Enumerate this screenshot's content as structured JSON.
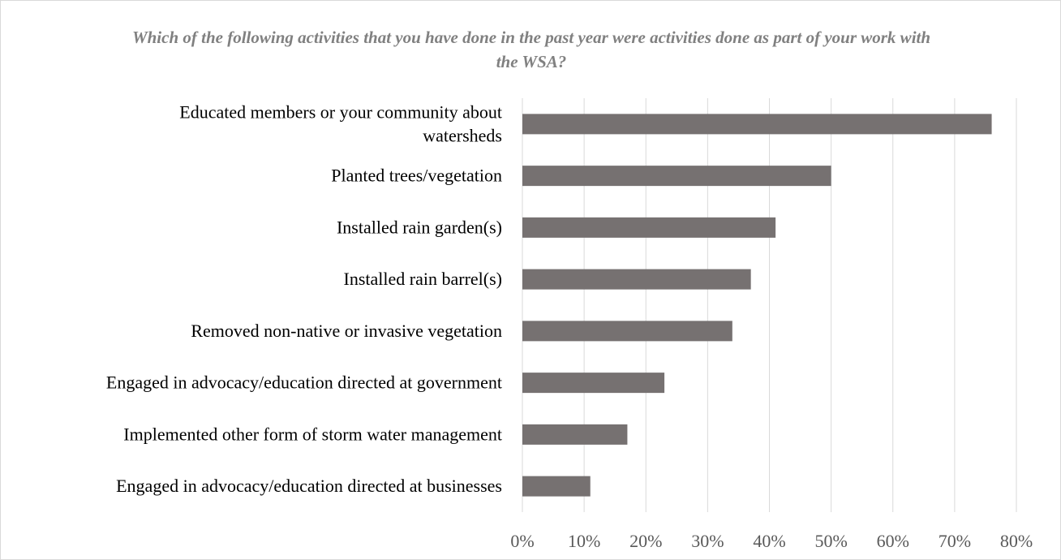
{
  "chart_data": {
    "type": "bar",
    "orientation": "horizontal",
    "title": "Which of the following activities that you have done in the past year were activities done as part of your work with the WSA?",
    "categories": [
      [
        "Educated members or your community about",
        "watersheds"
      ],
      [
        "Planted trees/vegetation"
      ],
      [
        "Installed rain garden(s)"
      ],
      [
        "Installed rain barrel(s)"
      ],
      [
        "Removed non-native or invasive vegetation"
      ],
      [
        "Engaged in advocacy/education directed at government"
      ],
      [
        "Implemented other form of storm water management"
      ],
      [
        "Engaged in advocacy/education directed at businesses"
      ]
    ],
    "values": [
      76,
      50,
      41,
      37,
      34,
      23,
      17,
      11
    ],
    "value_unit": "%",
    "xlim": [
      0,
      80
    ],
    "xticks": [
      "0%",
      "10%",
      "20%",
      "30%",
      "40%",
      "50%",
      "60%",
      "70%",
      "80%"
    ],
    "grid": "vertical",
    "bar_color": "#767171",
    "grid_color": "#d9d9d9",
    "legend": "none"
  }
}
